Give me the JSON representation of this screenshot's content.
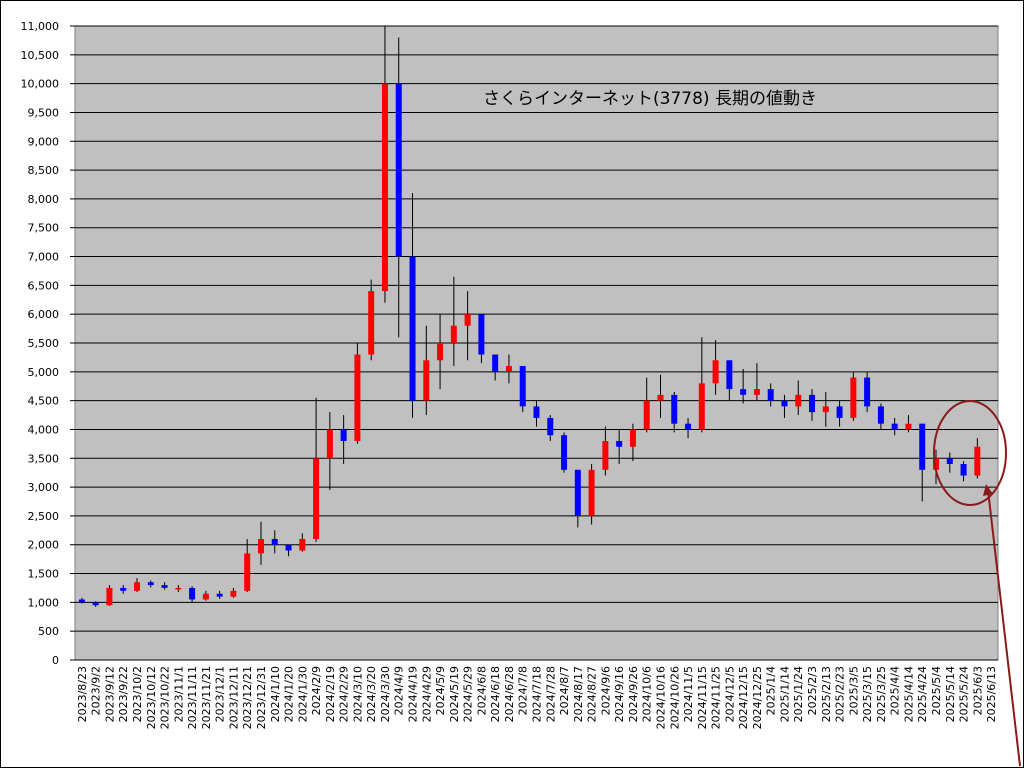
{
  "chart_data": {
    "type": "candlestick",
    "title": "さくらインターネット(3778)  長期の値動き",
    "categories": [
      "2023/8/23",
      "2023/9/2",
      "2023/9/12",
      "2023/9/22",
      "2023/10/2",
      "2023/10/12",
      "2023/10/22",
      "2023/11/1",
      "2023/11/11",
      "2023/11/21",
      "2023/12/1",
      "2023/12/11",
      "2023/12/21",
      "2023/12/31",
      "2024/1/10",
      "2024/1/20",
      "2024/1/30",
      "2024/2/9",
      "2024/2/19",
      "2024/2/29",
      "2024/3/10",
      "2024/3/20",
      "2024/3/30",
      "2024/4/9",
      "2024/4/19",
      "2024/4/29",
      "2024/5/9",
      "2024/5/19",
      "2024/5/29",
      "2024/6/8",
      "2024/6/18",
      "2024/6/28",
      "2024/7/8",
      "2024/7/18",
      "2024/7/28",
      "2024/8/7",
      "2024/8/17",
      "2024/8/27",
      "2024/9/6",
      "2024/9/16",
      "2024/9/26",
      "2024/10/6",
      "2024/10/16",
      "2024/10/26",
      "2024/11/5",
      "2024/11/15",
      "2024/11/25",
      "2024/12/5",
      "2024/12/15",
      "2024/12/25",
      "2025/1/4",
      "2025/1/14",
      "2025/1/24",
      "2025/2/3",
      "2025/2/13",
      "2025/2/23",
      "2025/3/5",
      "2025/3/15",
      "2025/3/25",
      "2025/4/4",
      "2025/4/14",
      "2025/4/24",
      "2025/5/4",
      "2025/5/14",
      "2025/5/24",
      "2025/6/3",
      "2025/6/13"
    ],
    "open": [
      1050,
      1000,
      950,
      1250,
      1200,
      1350,
      1300,
      1250,
      1250,
      1050,
      1150,
      1100,
      1200,
      1850,
      2100,
      2000,
      1900,
      2100,
      3500,
      4000,
      3800,
      5300,
      6400,
      10000,
      7000,
      4500,
      5200,
      5500,
      5800,
      6000,
      5300,
      5000,
      5100,
      4400,
      4200,
      3900,
      3300,
      2500,
      3300,
      3800,
      3700,
      4000,
      4500,
      4600,
      4100,
      4000,
      4800,
      5200,
      4700,
      4600,
      4700,
      4500,
      4400,
      4600,
      4300,
      4400,
      4200,
      4900,
      4400,
      4100,
      4000,
      4100,
      3300,
      3500,
      3400,
      3200,
      null
    ],
    "high": [
      1080,
      1020,
      1300,
      1300,
      1420,
      1380,
      1350,
      1300,
      1280,
      1200,
      1200,
      1250,
      2100,
      2400,
      2250,
      2000,
      2200,
      4550,
      4300,
      4250,
      5500,
      6600,
      11000,
      10800,
      8100,
      5800,
      6000,
      6650,
      6400,
      6000,
      5300,
      5300,
      5100,
      4500,
      4250,
      3950,
      3300,
      3400,
      4050,
      4000,
      4100,
      4900,
      4950,
      4650,
      4200,
      5600,
      5550,
      5200,
      5050,
      5150,
      4800,
      4600,
      4850,
      4700,
      4650,
      4500,
      5000,
      5000,
      4450,
      4200,
      4250,
      4100,
      3650,
      3600,
      3450,
      3850,
      null
    ],
    "low": [
      980,
      920,
      940,
      1150,
      1180,
      1260,
      1220,
      1180,
      1000,
      1030,
      1060,
      1080,
      1180,
      1650,
      1850,
      1800,
      1880,
      2050,
      2950,
      3400,
      3750,
      5200,
      6200,
      5600,
      4200,
      4250,
      4700,
      5100,
      5200,
      5150,
      4850,
      4800,
      4300,
      4050,
      3800,
      3250,
      2300,
      2350,
      3200,
      3400,
      3450,
      3950,
      4200,
      3950,
      3850,
      3950,
      4600,
      4500,
      4450,
      4500,
      4400,
      4200,
      4250,
      4150,
      4050,
      4050,
      4150,
      4300,
      4000,
      3900,
      3950,
      2750,
      3050,
      3250,
      3100,
      3150,
      null
    ],
    "close": [
      1000,
      950,
      1250,
      1200,
      1350,
      1300,
      1250,
      1250,
      1050,
      1150,
      1100,
      1200,
      1850,
      2100,
      2000,
      1900,
      2100,
      3500,
      4000,
      3800,
      5300,
      6400,
      10000,
      7000,
      4500,
      5200,
      5500,
      5800,
      6000,
      5300,
      5000,
      5100,
      4400,
      4200,
      3900,
      3300,
      2500,
      3300,
      3800,
      3700,
      4000,
      4500,
      4600,
      4100,
      4000,
      4800,
      5200,
      4700,
      4600,
      4700,
      4500,
      4400,
      4600,
      4300,
      4400,
      4200,
      4900,
      4400,
      4100,
      4000,
      4100,
      3300,
      3500,
      3400,
      3200,
      3700,
      null
    ],
    "up_color": "#ff0000",
    "down_color": "#0000ff",
    "ylim": [
      0,
      11000
    ],
    "yticks": [
      0,
      500,
      {
        "value": 1000,
        "label": "1,000"
      },
      {
        "value": 1500,
        "label": "1,500"
      },
      {
        "value": 2000,
        "label": "2,000"
      },
      {
        "value": 2500,
        "label": "2,500"
      },
      {
        "value": 3000,
        "label": "3,000"
      },
      {
        "value": 3500,
        "label": "3,500"
      },
      {
        "value": 4000,
        "label": "4,000"
      },
      {
        "value": 4500,
        "label": "4,500"
      },
      {
        "value": 5000,
        "label": "5,000"
      },
      {
        "value": 5500,
        "label": "5,500"
      },
      {
        "value": 6000,
        "label": "6,000"
      },
      {
        "value": 6500,
        "label": "6,500"
      },
      {
        "value": 7000,
        "label": "7,000"
      },
      {
        "value": 7500,
        "label": "7,500"
      },
      {
        "value": 8000,
        "label": "8,000"
      },
      {
        "value": 8500,
        "label": "8,500"
      },
      {
        "value": 9000,
        "label": "9,000"
      },
      {
        "value": 9500,
        "label": "9,500"
      },
      {
        "value": 10000,
        "label": "10,000"
      },
      {
        "value": 10500,
        "label": "10,500"
      },
      {
        "value": 11000,
        "label": "11,000"
      }
    ],
    "grid": true
  }
}
